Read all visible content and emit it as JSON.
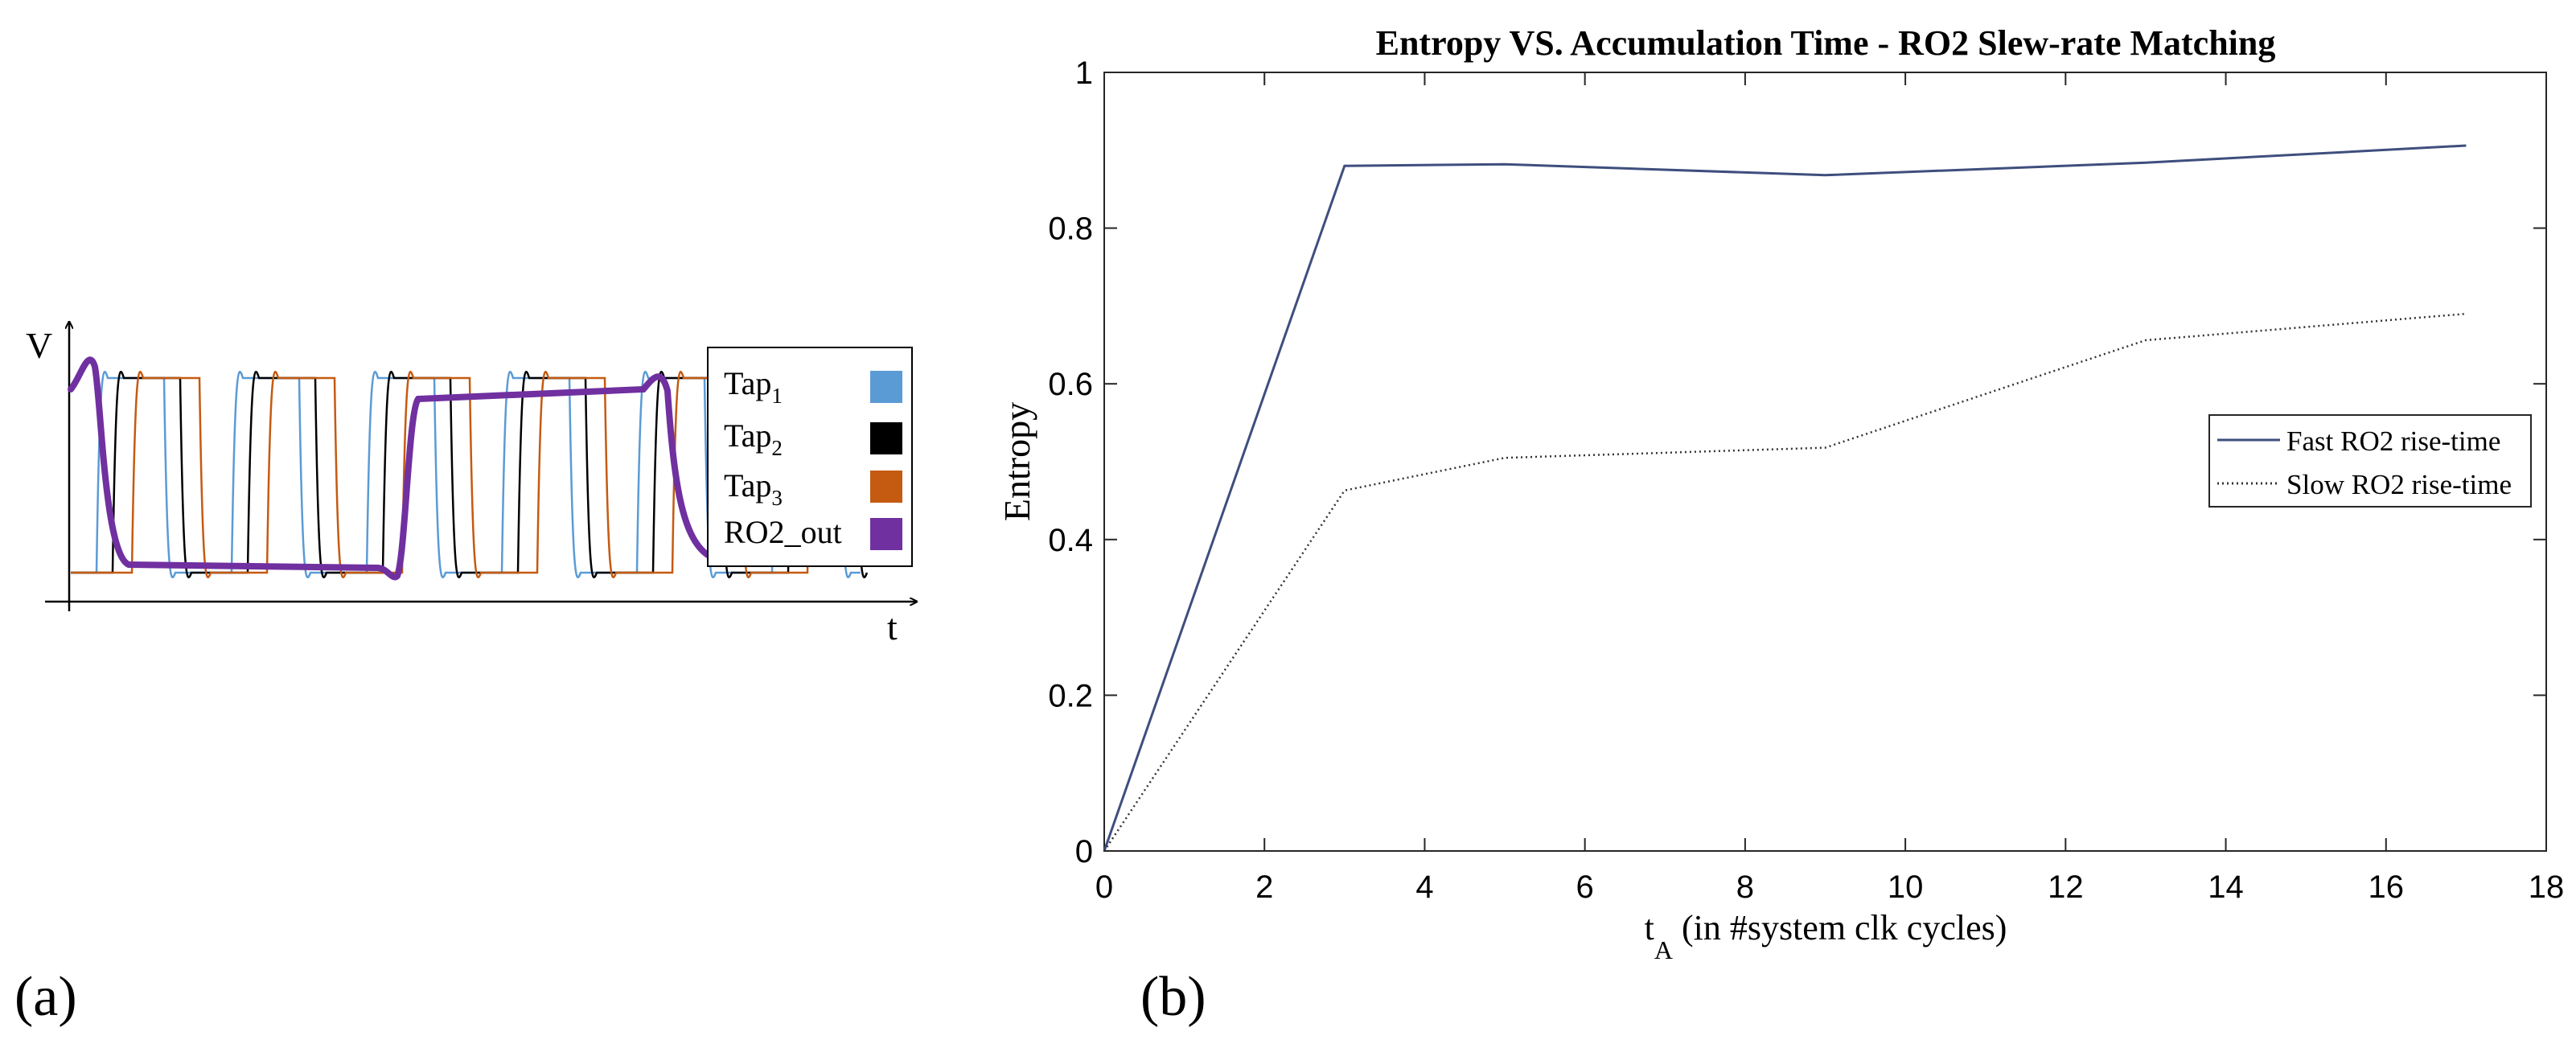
{
  "panel_a": {
    "label": "(a)",
    "y_axis_label": "V",
    "x_axis_label": "t",
    "legend": [
      {
        "base": "Tap",
        "sub": "1",
        "color": "#5b9bd5"
      },
      {
        "base": "Tap",
        "sub": "2",
        "color": "#000000"
      },
      {
        "base": "Tap",
        "sub": "3",
        "color": "#c55a11"
      },
      {
        "base": "RO2_out",
        "sub": "",
        "color": "#7030a0"
      }
    ]
  },
  "panel_b": {
    "label": "(b)"
  },
  "chart_data": [
    {
      "type": "line",
      "title": "",
      "xlabel": "t",
      "ylabel": "V",
      "series": [
        {
          "name": "Tap1",
          "color": "#5b9bd5",
          "values": []
        },
        {
          "name": "Tap2",
          "color": "#000000",
          "values": []
        },
        {
          "name": "Tap3",
          "color": "#c55a11",
          "values": []
        },
        {
          "name": "RO2_out",
          "color": "#7030a0",
          "values": []
        }
      ]
    },
    {
      "type": "line",
      "title": "Entropy VS. Accumulation Time - RO2 Slew-rate Matching",
      "xlabel_main": "t",
      "xlabel_sub": "A",
      "xlabel_rest": " (in #system clk cycles)",
      "ylabel": "Entropy",
      "xlim": [
        0,
        18
      ],
      "ylim": [
        0,
        1
      ],
      "xticks": [
        0,
        2,
        4,
        6,
        8,
        10,
        12,
        14,
        16,
        18
      ],
      "yticks": [
        0,
        0.2,
        0.4,
        0.6,
        0.8,
        1
      ],
      "ytick_labels": [
        "0",
        "0.2",
        "0.4",
        "0.6",
        "0.8",
        "1"
      ],
      "legend_position": "right",
      "series": [
        {
          "name": "Fast RO2 rise-time",
          "style": "solid",
          "color": "#3e4e7e",
          "x": [
            0,
            3,
            5,
            9,
            13,
            17
          ],
          "y": [
            0,
            0.88,
            0.882,
            0.868,
            0.884,
            0.906
          ]
        },
        {
          "name": "Slow RO2 rise-time",
          "style": "dotted",
          "color": "#333333",
          "x": [
            0,
            3,
            5,
            9,
            13,
            17
          ],
          "y": [
            0,
            0.463,
            0.505,
            0.518,
            0.656,
            0.69
          ]
        }
      ]
    }
  ]
}
